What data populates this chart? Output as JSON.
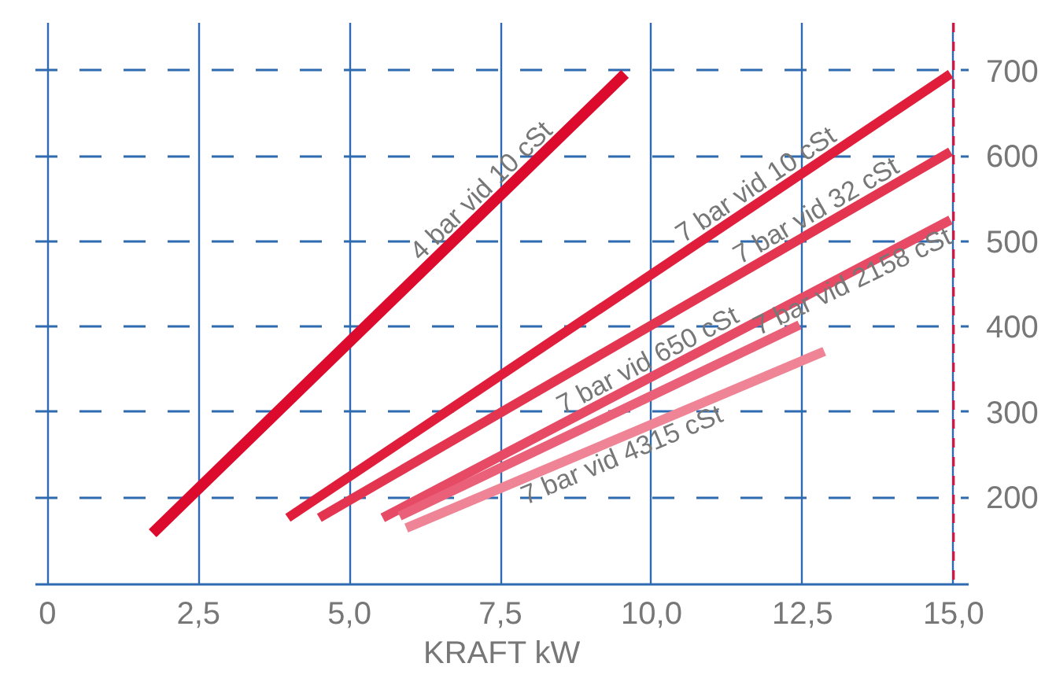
{
  "chart_data": {
    "type": "line",
    "xlabel": "KRAFT kW",
    "xlim": [
      -0.2,
      15.25
    ],
    "ylim": [
      98,
      756
    ],
    "xticks": [
      {
        "value": 0,
        "label": "0"
      },
      {
        "value": 2.5,
        "label": "2,5"
      },
      {
        "value": 5,
        "label": "5,0"
      },
      {
        "value": 7.5,
        "label": "7,5"
      },
      {
        "value": 10,
        "label": "10,0"
      },
      {
        "value": 12.5,
        "label": "12,5"
      },
      {
        "value": 15,
        "label": "15,0"
      }
    ],
    "yticks": [
      200,
      300,
      400,
      500,
      600,
      700
    ],
    "grid": true,
    "marker": "none",
    "line_style": "solid",
    "ref_lines": [
      {
        "axis": "x",
        "value": 15,
        "label": null,
        "color": "#e0103a",
        "line_style": "dashed"
      }
    ],
    "series": [
      {
        "name": "4 bar vid 10 cSt",
        "color": "#dc0a2d",
        "x": [
          1.74,
          9.56
        ],
        "values": [
          158,
          696
        ]
      },
      {
        "name": "7 bar vid 10 cSt",
        "color": "#e01e3c",
        "x": [
          3.98,
          14.95
        ],
        "values": [
          176,
          696
        ]
      },
      {
        "name": "7 bar vid 32 cSt",
        "color": "#e33550",
        "x": [
          4.5,
          14.95
        ],
        "values": [
          176,
          605
        ]
      },
      {
        "name": "7 bar vid 650 cSt",
        "color": "#e64a64",
        "x": [
          5.55,
          14.95
        ],
        "values": [
          176,
          525
        ]
      },
      {
        "name": "7 bar vid 2158 cSt",
        "color": "#ea6079",
        "x": [
          5.83,
          12.45
        ],
        "values": [
          178,
          402
        ]
      },
      {
        "name": "7 bar vid 4315 cSt",
        "color": "#ef8496",
        "x": [
          5.94,
          12.86
        ],
        "values": [
          164,
          371
        ]
      }
    ]
  }
}
